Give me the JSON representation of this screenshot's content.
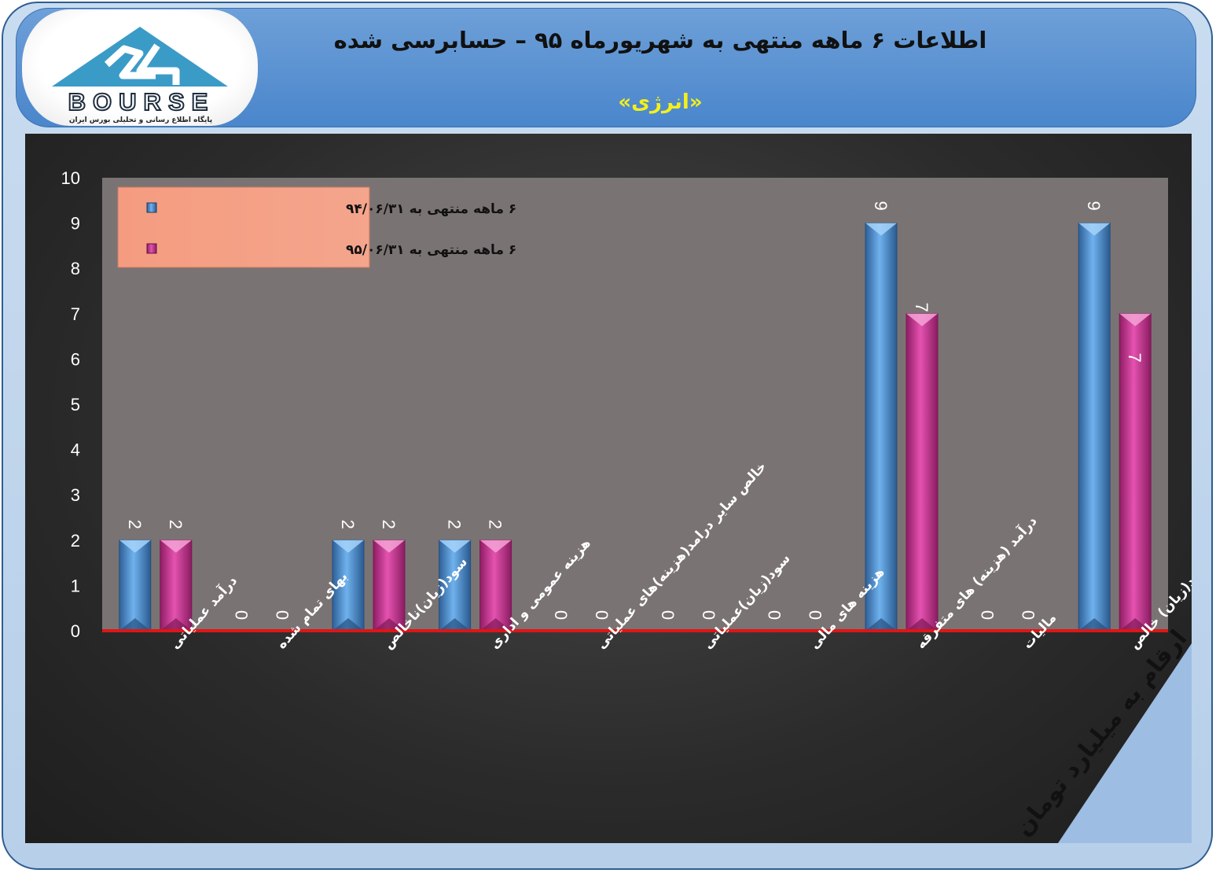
{
  "header": {
    "title": "اطلاعات ۶ ماهه منتهی به شهریورماه ۹۵ – حسابرسی شده",
    "subtitle": "«انرژی»"
  },
  "logo": {
    "word": "BOURSE",
    "tagline": "پایگاه اطلاع رسانی و تحلیلی بورس ایران",
    "icon": "bourse-24-logo-icon"
  },
  "unit_note": "ارقام به میلیارد تومان",
  "colors": {
    "series1": "#4f93d8",
    "series2": "#d9409f",
    "baseline": "#e01515",
    "plot_area": "#7a7373"
  },
  "chart_data": {
    "type": "bar",
    "categories": [
      "درآمد عملیاتی",
      "بهای تمام شده",
      "سود(زیان)ناخالص",
      "هزینه عمومی و اداری",
      "خالص سایر درامد(هزینه)های عملیاتی",
      "سود(زیان)عملیاتی",
      "هزینه های مالی",
      "درآمد (هزینه) های متفرقه",
      "مالیات",
      "سود(زیان) خالص"
    ],
    "series": [
      {
        "name": "۶ ماهه منتهی به ۹۴/۰۶/۳۱",
        "values": [
          2,
          0,
          2,
          2,
          0,
          0,
          0,
          9,
          0,
          9
        ]
      },
      {
        "name": "۶ ماهه منتهی به ۹۵/۰۶/۳۱",
        "values": [
          2,
          0,
          2,
          2,
          0,
          0,
          0,
          7,
          0,
          7
        ]
      }
    ],
    "ylim": [
      0,
      10
    ],
    "yticks": [
      0,
      1,
      2,
      3,
      4,
      5,
      6,
      7,
      8,
      9,
      10
    ],
    "grid": false,
    "legend_position": "top-left"
  }
}
